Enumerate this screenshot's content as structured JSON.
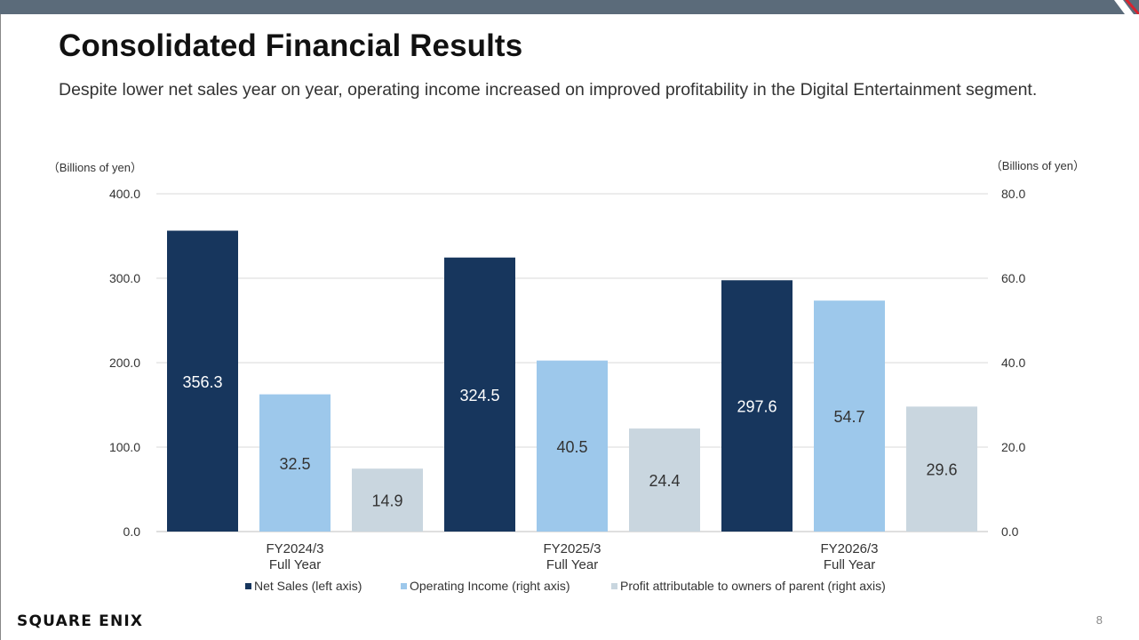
{
  "slide": {
    "title": "Consolidated Financial Results",
    "subtitle": "Despite lower net sales year on year, operating income increased on improved profitability in the Digital Entertainment segment.",
    "logo_text": "SQUARE ENIX",
    "page_number": "8",
    "colors": {
      "topbar": "#5b6b7a",
      "accent_red": "#d9232e"
    }
  },
  "chart_data": {
    "type": "bar",
    "categories": [
      [
        "FY2024/3",
        "Full Year"
      ],
      [
        "FY2025/3",
        "Full Year"
      ],
      [
        "FY2026/3",
        "Full Year"
      ]
    ],
    "left_axis": {
      "unit_label": "（Billions of yen）",
      "ylim": [
        0,
        400
      ],
      "ticks": [
        "0.0",
        "100.0",
        "200.0",
        "300.0",
        "400.0"
      ]
    },
    "right_axis": {
      "unit_label": "（Billions of yen）",
      "ylim": [
        0,
        80
      ],
      "ticks": [
        "0.0",
        "20.0",
        "40.0",
        "60.0",
        "80.0"
      ]
    },
    "grid": true,
    "legend_position": "bottom",
    "series": [
      {
        "name": "Net Sales (left axis)",
        "axis": "left",
        "color": "#17365d",
        "label_color": "#ffffff",
        "values": [
          356.3,
          324.5,
          297.6
        ],
        "labels": [
          "356.3",
          "324.5",
          "297.6"
        ]
      },
      {
        "name": "Operating Income (right axis)",
        "axis": "right",
        "color": "#9dc8eb",
        "label_color": "#333333",
        "values": [
          32.5,
          40.5,
          54.7
        ],
        "labels": [
          "32.5",
          "40.5",
          "54.7"
        ]
      },
      {
        "name": "Profit attributable to owners of parent (right axis)",
        "axis": "right",
        "color": "#c9d6df",
        "label_color": "#333333",
        "values": [
          14.9,
          24.4,
          29.6
        ],
        "labels": [
          "14.9",
          "24.4",
          "29.6"
        ]
      }
    ]
  }
}
